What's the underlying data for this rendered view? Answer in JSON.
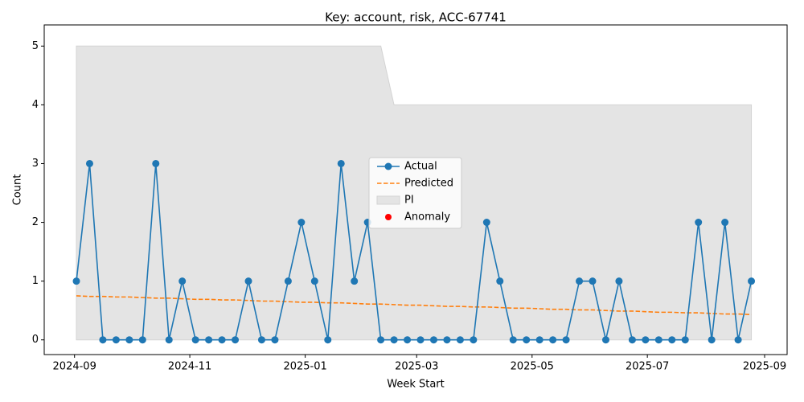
{
  "chart_data": {
    "type": "line",
    "title": "Key: account, risk, ACC-67741",
    "x_label": "Week Start",
    "y_label": "Count",
    "categories": [
      null,
      null,
      null,
      null,
      null,
      null,
      null,
      null,
      null,
      null,
      null,
      null,
      null,
      null,
      null,
      null,
      null,
      null,
      null,
      null,
      null,
      null,
      null,
      null,
      null,
      null,
      null,
      null,
      null,
      null,
      null,
      null,
      null,
      null,
      null,
      null,
      null,
      null,
      null,
      null,
      null,
      null,
      null,
      null,
      null,
      null,
      null,
      null,
      null,
      null,
      null,
      null
    ],
    "xlim": [
      -2.43,
      53.7
    ],
    "xticks": [
      {
        "value": -0.14,
        "label": "2024-09"
      },
      {
        "value": 8.57,
        "label": "2024-11"
      },
      {
        "value": 17.29,
        "label": "2025-01"
      },
      {
        "value": 25.71,
        "label": "2025-03"
      },
      {
        "value": 34.43,
        "label": "2025-05"
      },
      {
        "value": 43.14,
        "label": "2025-07"
      },
      {
        "value": 52,
        "label": "2025-09"
      }
    ],
    "ylim": [
      -0.25,
      5.36
    ],
    "yticks": [
      0,
      1,
      2,
      3,
      4,
      5
    ],
    "legend": "center",
    "series": [
      {
        "name": "Actual",
        "color": "#1f77b4",
        "style": "line-marker",
        "values": [
          1,
          3,
          0,
          0,
          0,
          0,
          3,
          0,
          1,
          0,
          0,
          0,
          0,
          1,
          0,
          0,
          1,
          2,
          1,
          0,
          3,
          1,
          2,
          0,
          0,
          0,
          0,
          0,
          0,
          0,
          0,
          2,
          1,
          0,
          0,
          0,
          0,
          0,
          1,
          1,
          0,
          1,
          0,
          0,
          0,
          0,
          0,
          2,
          0,
          2,
          0,
          1
        ]
      },
      {
        "name": "Predicted",
        "color": "#ff7f0e",
        "style": "dashed",
        "values": [
          0.75,
          0.74,
          0.74,
          0.73,
          0.73,
          0.72,
          0.71,
          0.71,
          0.7,
          0.69,
          0.69,
          0.68,
          0.68,
          0.67,
          0.66,
          0.66,
          0.65,
          0.64,
          0.64,
          0.63,
          0.63,
          0.62,
          0.61,
          0.61,
          0.6,
          0.59,
          0.59,
          0.58,
          0.57,
          0.57,
          0.56,
          0.56,
          0.55,
          0.54,
          0.54,
          0.53,
          0.52,
          0.52,
          0.51,
          0.51,
          0.5,
          0.49,
          0.49,
          0.48,
          0.47,
          0.47,
          0.46,
          0.46,
          0.45,
          0.44,
          0.44,
          0.43
        ]
      },
      {
        "name": "PI",
        "color": "#e4e4e4",
        "style": "band",
        "values": [
          5,
          5,
          5,
          5,
          5,
          5,
          5,
          5,
          5,
          5,
          5,
          5,
          5,
          5,
          5,
          5,
          5,
          5,
          5,
          5,
          5,
          5,
          5,
          5,
          4,
          4,
          4,
          4,
          4,
          4,
          4,
          4,
          4,
          4,
          4,
          4,
          4,
          4,
          4,
          4,
          4,
          4,
          4,
          4,
          4,
          4,
          4,
          4,
          4,
          4,
          4,
          4
        ],
        "lower": [
          0,
          0,
          0,
          0,
          0,
          0,
          0,
          0,
          0,
          0,
          0,
          0,
          0,
          0,
          0,
          0,
          0,
          0,
          0,
          0,
          0,
          0,
          0,
          0,
          0,
          0,
          0,
          0,
          0,
          0,
          0,
          0,
          0,
          0,
          0,
          0,
          0,
          0,
          0,
          0,
          0,
          0,
          0,
          0,
          0,
          0,
          0,
          0,
          0,
          0,
          0,
          0
        ]
      },
      {
        "name": "Anomaly",
        "color": "#ff0000",
        "style": "scatter",
        "values": [
          null,
          null,
          null,
          null,
          null,
          null,
          null,
          null,
          null,
          null,
          null,
          null,
          null,
          null,
          null,
          null,
          null,
          null,
          null,
          null,
          null,
          null,
          null,
          null,
          null,
          null,
          null,
          null,
          null,
          null,
          null,
          null,
          null,
          null,
          null,
          null,
          null,
          null,
          null,
          null,
          null,
          null,
          null,
          null,
          null,
          null,
          null,
          null,
          null,
          null,
          null,
          null
        ]
      }
    ]
  }
}
